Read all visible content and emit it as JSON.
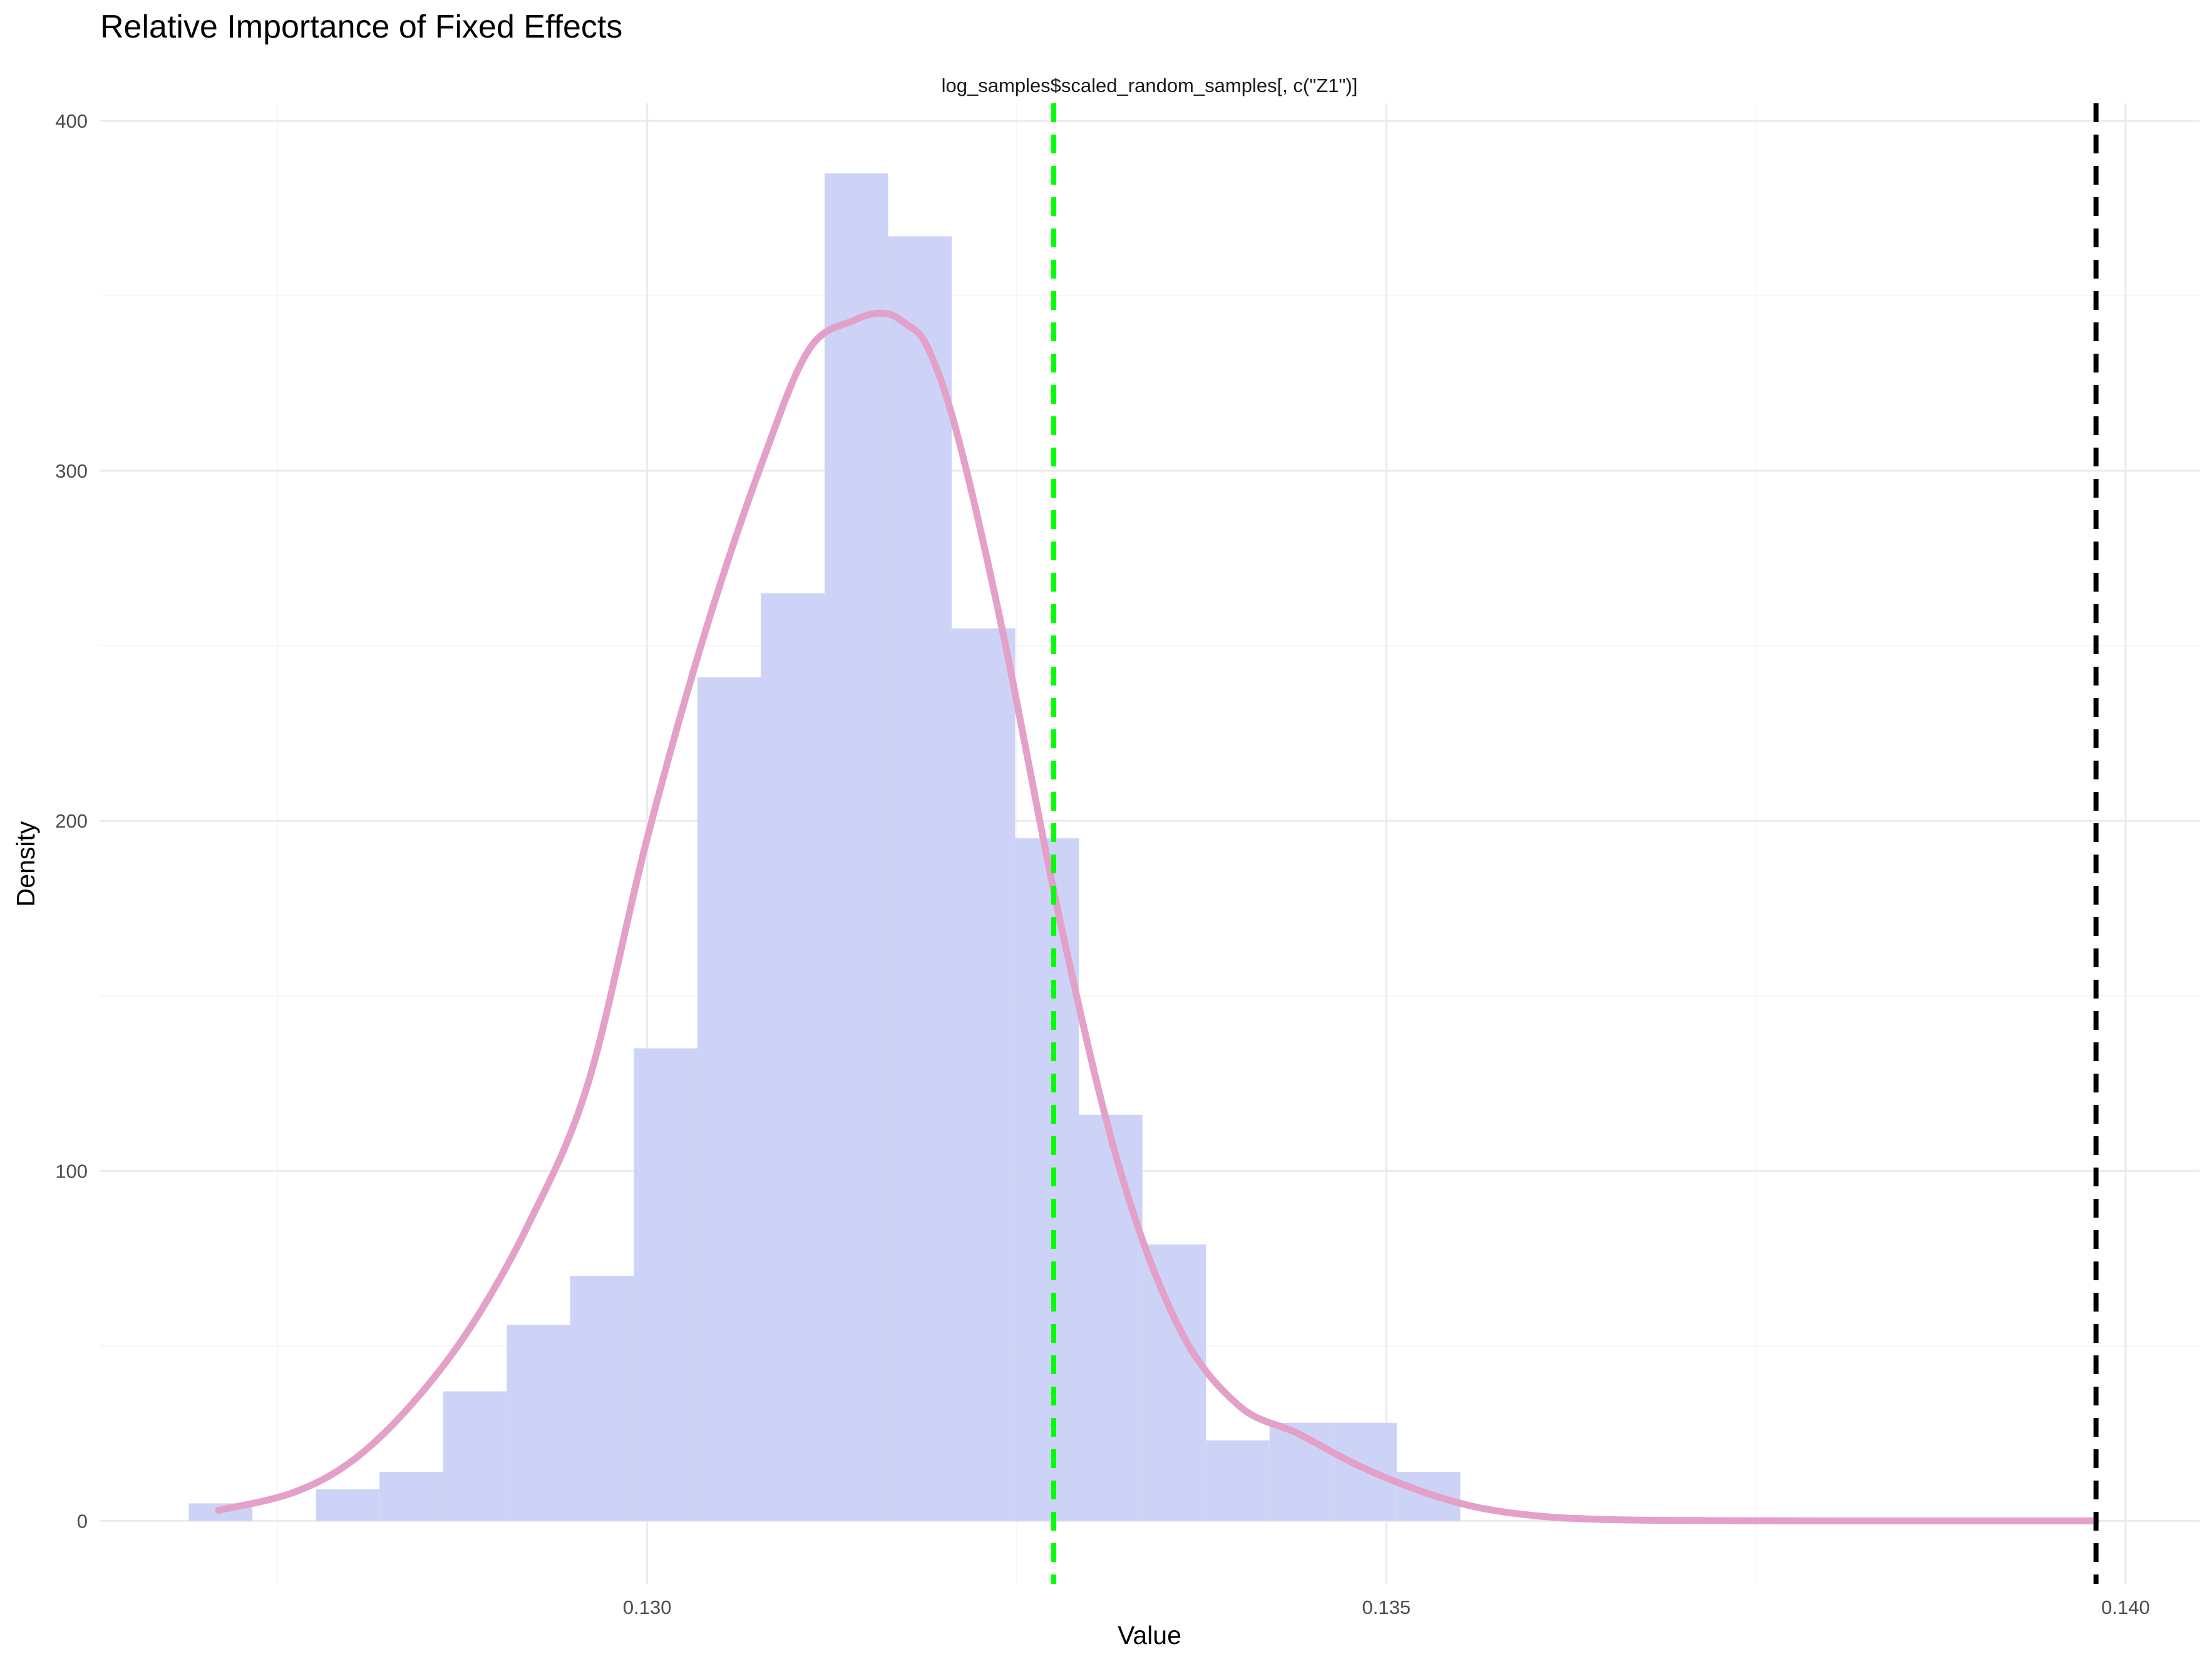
{
  "chart_data": {
    "type": "histogram",
    "title": "Relative Importance of Fixed Effects",
    "subtitle": "log_samples$scaled_random_samples[, c(\"Z1\")]",
    "xlabel": "Value",
    "ylabel": "Density",
    "xlim": [
      0.1263,
      0.1405
    ],
    "ylim": [
      -18,
      405
    ],
    "x_ticks": [
      0.13,
      0.135,
      0.14
    ],
    "x_tick_labels": [
      "0.130",
      "0.135",
      "0.140"
    ],
    "x_minor_ticks": [
      0.1275,
      0.1325,
      0.1375
    ],
    "y_ticks": [
      0,
      100,
      200,
      300,
      400
    ],
    "y_tick_labels": [
      "0",
      "100",
      "200",
      "300",
      "400"
    ],
    "y_minor_ticks": [
      50,
      150,
      250,
      350
    ],
    "grid": true,
    "colors": {
      "bars": "#ccd3f6",
      "density": "#e3a0c8",
      "mean_line": "#00ff00",
      "reference_line": "#000000"
    },
    "histogram": {
      "bin_width": 0.00043,
      "bins": [
        {
          "x0": 0.1269,
          "x1": 0.12733,
          "density": 5
        },
        {
          "x0": 0.12733,
          "x1": 0.12776,
          "density": 0
        },
        {
          "x0": 0.12776,
          "x1": 0.12819,
          "density": 9
        },
        {
          "x0": 0.12819,
          "x1": 0.12862,
          "density": 14
        },
        {
          "x0": 0.12862,
          "x1": 0.12905,
          "density": 37
        },
        {
          "x0": 0.12905,
          "x1": 0.12948,
          "density": 56
        },
        {
          "x0": 0.12948,
          "x1": 0.12991,
          "density": 70
        },
        {
          "x0": 0.12991,
          "x1": 0.13034,
          "density": 135
        },
        {
          "x0": 0.13034,
          "x1": 0.13077,
          "density": 241
        },
        {
          "x0": 0.13077,
          "x1": 0.1312,
          "density": 265
        },
        {
          "x0": 0.1312,
          "x1": 0.13163,
          "density": 385
        },
        {
          "x0": 0.13163,
          "x1": 0.13206,
          "density": 367
        },
        {
          "x0": 0.13206,
          "x1": 0.13249,
          "density": 255
        },
        {
          "x0": 0.13249,
          "x1": 0.13292,
          "density": 195
        },
        {
          "x0": 0.13292,
          "x1": 0.13335,
          "density": 116
        },
        {
          "x0": 0.13335,
          "x1": 0.13378,
          "density": 79
        },
        {
          "x0": 0.13378,
          "x1": 0.13421,
          "density": 23
        },
        {
          "x0": 0.13421,
          "x1": 0.13464,
          "density": 28
        },
        {
          "x0": 0.13464,
          "x1": 0.13507,
          "density": 28
        },
        {
          "x0": 0.13507,
          "x1": 0.1355,
          "density": 14
        }
      ]
    },
    "density_curve": {
      "x": [
        0.1271,
        0.1276,
        0.128,
        0.1284,
        0.1288,
        0.1292,
        0.1296,
        0.13,
        0.1304,
        0.1308,
        0.1311,
        0.1314,
        0.1316,
        0.13175,
        0.1319,
        0.1321,
        0.1324,
        0.1328,
        0.1332,
        0.1336,
        0.134,
        0.1344,
        0.1348,
        0.1352,
        0.1356,
        0.136,
        0.1364,
        0.137,
        0.138,
        0.139,
        0.1398
      ],
      "y": [
        3,
        8,
        17,
        33,
        55,
        85,
        125,
        195,
        255,
        305,
        335,
        343,
        345,
        342,
        335,
        310,
        255,
        170,
        100,
        55,
        33,
        25,
        16,
        9,
        4,
        1.5,
        0.5,
        0.1,
        0.0,
        0.0,
        0.0
      ]
    },
    "vertical_lines": [
      {
        "x": 0.13275,
        "color": "#00ff00",
        "style": "dashed"
      },
      {
        "x": 0.1398,
        "color": "#000000",
        "style": "dashed"
      }
    ]
  }
}
